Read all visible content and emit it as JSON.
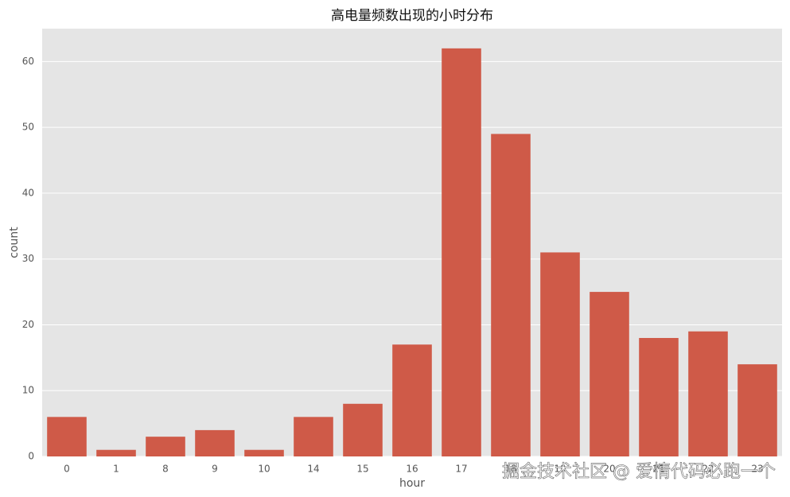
{
  "chart_data": {
    "type": "bar",
    "title": "高电量频数出现的小时分布",
    "x_label": "hour",
    "y_label": "count",
    "categories": [
      "0",
      "1",
      "8",
      "9",
      "10",
      "14",
      "15",
      "16",
      "17",
      "18",
      "19",
      "20",
      "21",
      "22",
      "23"
    ],
    "values": [
      6,
      1,
      3,
      4,
      1,
      6,
      8,
      17,
      62,
      49,
      31,
      25,
      18,
      19,
      14
    ],
    "color": "#cf5a48",
    "ylim": [
      0,
      65
    ],
    "yticks": [
      0,
      10,
      20,
      30,
      40,
      50,
      60
    ],
    "grid": true,
    "watermark": "掘金技术社区 @ 爱情代码必跑一个"
  }
}
